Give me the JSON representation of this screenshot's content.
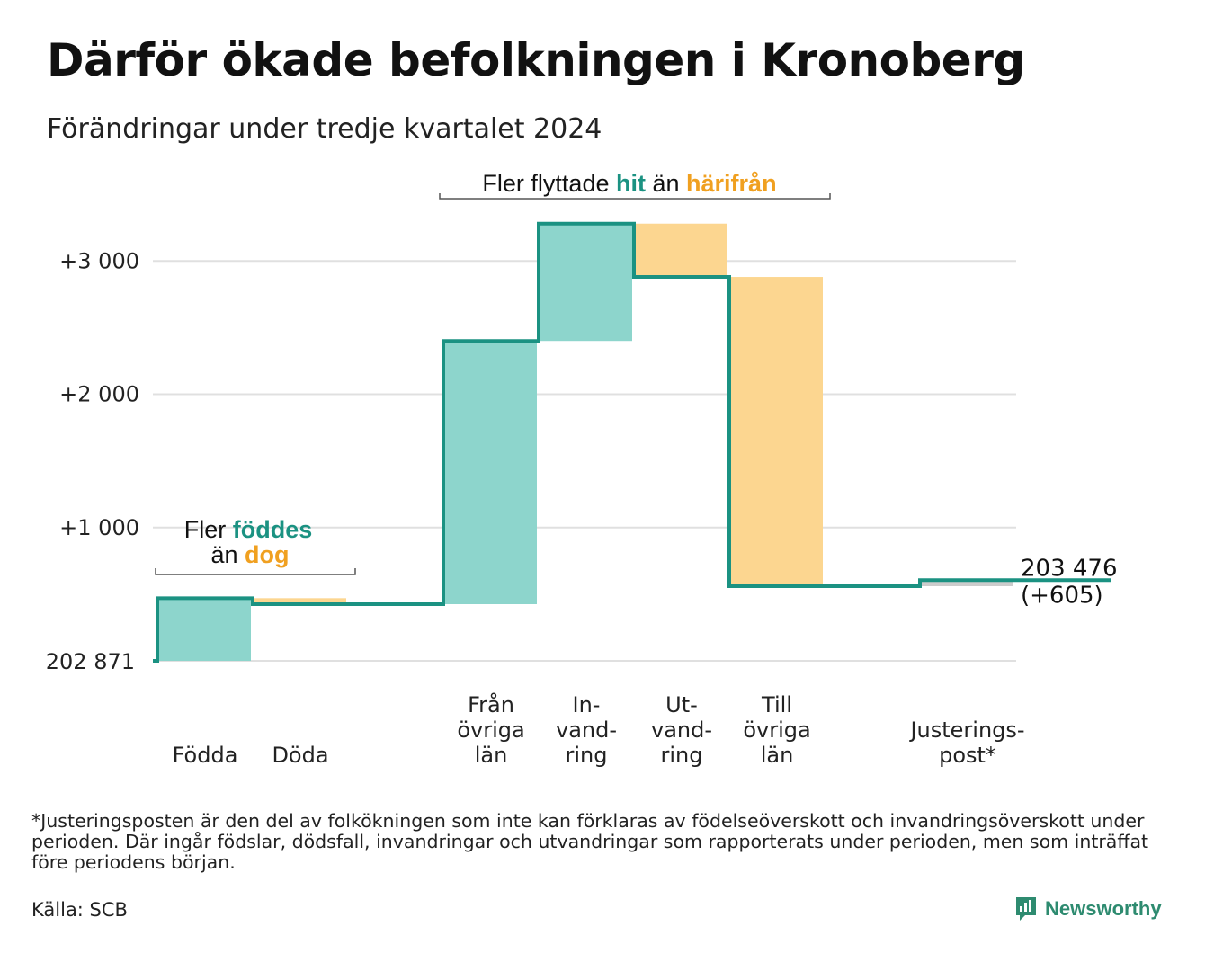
{
  "title": "Därför ökade befolkningen i Kronoberg",
  "subtitle": "Förändringar under tredje kvartalet 2024",
  "colors": {
    "line": "#1b9282",
    "increase": "#8dd5cc",
    "decrease": "#fcd690",
    "adjustment": "#cccccc",
    "highlight_teal": "#1b9282",
    "highlight_orange": "#f0a020",
    "grid": "#e0e0e0",
    "brand": "#2e8b70"
  },
  "chart_data": {
    "type": "waterfall",
    "baseline": 202871,
    "baseline_label": "202 871",
    "yticks": [
      {
        "value": 1000,
        "label": "+1 000"
      },
      {
        "value": 2000,
        "label": "+2 000"
      },
      {
        "value": 3000,
        "label": "+3 000"
      }
    ],
    "ylim": [
      0,
      3300
    ],
    "steps": [
      {
        "category": [
          "Födda"
        ],
        "change": 470,
        "kind": "increase"
      },
      {
        "category": [
          "Döda"
        ],
        "change": -45,
        "kind": "decrease"
      },
      {
        "category": [],
        "change": 0,
        "kind": "gap"
      },
      {
        "category": [
          "Från",
          "övriga",
          "län"
        ],
        "change": 1975,
        "kind": "increase"
      },
      {
        "category": [
          "In-",
          "vand-",
          "ring"
        ],
        "change": 880,
        "kind": "increase"
      },
      {
        "category": [
          "Ut-",
          "vand-",
          "ring"
        ],
        "change": -400,
        "kind": "decrease"
      },
      {
        "category": [
          "Till",
          "övriga",
          "län"
        ],
        "change": -2320,
        "kind": "decrease"
      },
      {
        "category": [],
        "change": 0,
        "kind": "gap"
      },
      {
        "category": [
          "Justerings-",
          "post*"
        ],
        "change": 45,
        "kind": "adjustment"
      },
      {
        "category": [],
        "change": 0,
        "kind": "gap"
      }
    ],
    "end_label": [
      "203 476",
      "(+605)"
    ],
    "annotations": [
      {
        "parts": [
          {
            "text": "Fler flyttade",
            "style": "plain"
          },
          {
            "text": " hit",
            "style": "teal"
          },
          {
            "text": "  än ",
            "style": "plain"
          },
          {
            "text": "härifrån",
            "style": "orange"
          }
        ]
      },
      {
        "lines": [
          [
            {
              "text": "Fler ",
              "style": "plain"
            },
            {
              "text": "föddes",
              "style": "teal"
            }
          ],
          [
            {
              "text": "än ",
              "style": "plain"
            },
            {
              "text": "dog",
              "style": "orange"
            }
          ]
        ]
      }
    ]
  },
  "footnote": "*Justeringsposten är den del av folkökningen som inte kan förklaras av födelseöverskott och invandringsöverskott under perioden. Där ingår födslar, dödsfall, invandringar och utvandringar som rapporterats under perioden, men som inträffat före periodens början.",
  "source": "Källa: SCB",
  "brand": {
    "name": "Newsworthy",
    "icon": "newsworthy-logo-icon"
  }
}
